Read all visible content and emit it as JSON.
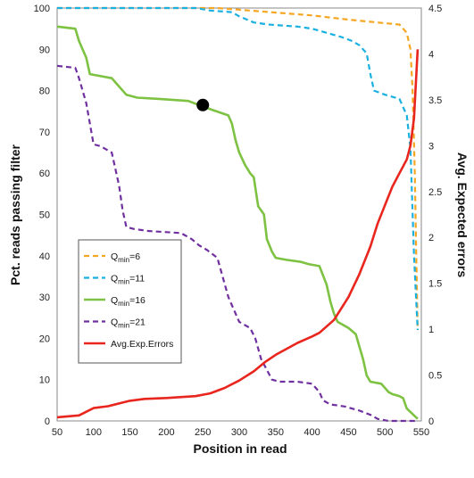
{
  "chart_data": {
    "type": "line",
    "xlabel": "Position in read",
    "ylabel_left": "Pct. reads passing filter",
    "ylabel_right": "Avg. Expected errors",
    "xlim": [
      50,
      550
    ],
    "ylim_left": [
      0,
      100
    ],
    "ylim_right": [
      0,
      4.5
    ],
    "x_ticks": [
      50,
      100,
      150,
      200,
      250,
      300,
      350,
      400,
      450,
      500,
      550
    ],
    "y_ticks_left": [
      0,
      10,
      20,
      30,
      40,
      50,
      60,
      70,
      80,
      90,
      100
    ],
    "y_ticks_right": [
      "0",
      "0.5",
      "1",
      "1.5",
      "2",
      "2.5",
      "3",
      "3.5",
      "4",
      "4.5"
    ],
    "grid": true,
    "legend_position": "lower-left",
    "series": [
      {
        "name": "Q",
        "subscript": "min",
        "suffix": "=6",
        "color": "#f5a623",
        "dash": true,
        "axis": "left",
        "points": [
          [
            50,
            100
          ],
          [
            270,
            100
          ],
          [
            300,
            99.6
          ],
          [
            350,
            98.9
          ],
          [
            400,
            98.2
          ],
          [
            450,
            97.2
          ],
          [
            490,
            96.5
          ],
          [
            520,
            96
          ],
          [
            530,
            94
          ],
          [
            535,
            90
          ],
          [
            538,
            80
          ],
          [
            541,
            60
          ],
          [
            543,
            40
          ],
          [
            545,
            22
          ]
        ]
      },
      {
        "name": "Q",
        "subscript": "min",
        "suffix": "=11",
        "color": "#1ab0e0",
        "dash": true,
        "axis": "left",
        "points": [
          [
            50,
            100
          ],
          [
            240,
            100
          ],
          [
            260,
            99.4
          ],
          [
            290,
            99
          ],
          [
            300,
            98
          ],
          [
            320,
            96.5
          ],
          [
            340,
            96
          ],
          [
            380,
            95.5
          ],
          [
            400,
            95
          ],
          [
            440,
            93
          ],
          [
            455,
            92
          ],
          [
            465,
            91
          ],
          [
            475,
            89
          ],
          [
            480,
            84
          ],
          [
            485,
            80
          ],
          [
            500,
            79
          ],
          [
            520,
            78
          ],
          [
            530,
            74
          ],
          [
            535,
            66
          ],
          [
            540,
            40
          ],
          [
            545,
            22
          ]
        ]
      },
      {
        "name": "Q",
        "subscript": "min",
        "suffix": "=16",
        "color": "#7dc242",
        "dash": false,
        "axis": "left",
        "points": [
          [
            50,
            95.5
          ],
          [
            75,
            95
          ],
          [
            80,
            92
          ],
          [
            90,
            88
          ],
          [
            95,
            84
          ],
          [
            110,
            83.5
          ],
          [
            125,
            83
          ],
          [
            135,
            81
          ],
          [
            145,
            79
          ],
          [
            160,
            78.3
          ],
          [
            190,
            78
          ],
          [
            230,
            77.5
          ],
          [
            245,
            76.5
          ],
          [
            260,
            75.5
          ],
          [
            285,
            74
          ],
          [
            290,
            72
          ],
          [
            295,
            68
          ],
          [
            300,
            65
          ],
          [
            308,
            62
          ],
          [
            315,
            60
          ],
          [
            320,
            59
          ],
          [
            326,
            52
          ],
          [
            330,
            51
          ],
          [
            334,
            50
          ],
          [
            338,
            44
          ],
          [
            345,
            41
          ],
          [
            350,
            39.5
          ],
          [
            365,
            39
          ],
          [
            385,
            38.5
          ],
          [
            395,
            38
          ],
          [
            410,
            37.5
          ],
          [
            420,
            33
          ],
          [
            425,
            29
          ],
          [
            430,
            26
          ],
          [
            435,
            24
          ],
          [
            450,
            22.5
          ],
          [
            460,
            21
          ],
          [
            465,
            18
          ],
          [
            470,
            15
          ],
          [
            475,
            11
          ],
          [
            480,
            9.5
          ],
          [
            495,
            9
          ],
          [
            505,
            7
          ],
          [
            510,
            6.5
          ],
          [
            520,
            6
          ],
          [
            525,
            5.5
          ],
          [
            530,
            3
          ],
          [
            545,
            0.5
          ]
        ]
      },
      {
        "name": "Q",
        "subscript": "min",
        "suffix": "=21",
        "color": "#7030a0",
        "dash": true,
        "axis": "left",
        "points": [
          [
            50,
            86
          ],
          [
            75,
            85.5
          ],
          [
            80,
            83
          ],
          [
            90,
            77
          ],
          [
            95,
            72
          ],
          [
            100,
            67
          ],
          [
            110,
            66.5
          ],
          [
            125,
            65
          ],
          [
            135,
            57
          ],
          [
            140,
            51
          ],
          [
            145,
            47
          ],
          [
            155,
            46.5
          ],
          [
            175,
            46
          ],
          [
            220,
            45.5
          ],
          [
            235,
            44
          ],
          [
            245,
            42.5
          ],
          [
            255,
            41.5
          ],
          [
            270,
            39.5
          ],
          [
            285,
            30
          ],
          [
            295,
            26
          ],
          [
            300,
            24
          ],
          [
            315,
            22.5
          ],
          [
            322,
            20
          ],
          [
            330,
            15
          ],
          [
            336,
            13
          ],
          [
            345,
            10
          ],
          [
            355,
            9.5
          ],
          [
            380,
            9.5
          ],
          [
            400,
            9
          ],
          [
            410,
            7
          ],
          [
            415,
            5
          ],
          [
            425,
            4
          ],
          [
            445,
            3.5
          ],
          [
            465,
            2.5
          ],
          [
            480,
            1.5
          ],
          [
            490,
            0.5
          ],
          [
            505,
            0
          ],
          [
            545,
            0
          ]
        ]
      },
      {
        "name": "Avg.Exp.Errors",
        "subscript": "",
        "suffix": "",
        "color": "#e8261e",
        "dash": false,
        "axis": "right",
        "points": [
          [
            50,
            0.04
          ],
          [
            80,
            0.06
          ],
          [
            95,
            0.12
          ],
          [
            100,
            0.14
          ],
          [
            120,
            0.16
          ],
          [
            140,
            0.2
          ],
          [
            150,
            0.22
          ],
          [
            170,
            0.24
          ],
          [
            200,
            0.25
          ],
          [
            240,
            0.27
          ],
          [
            260,
            0.3
          ],
          [
            280,
            0.36
          ],
          [
            300,
            0.44
          ],
          [
            320,
            0.54
          ],
          [
            335,
            0.64
          ],
          [
            350,
            0.72
          ],
          [
            380,
            0.85
          ],
          [
            400,
            0.92
          ],
          [
            410,
            0.96
          ],
          [
            430,
            1.1
          ],
          [
            450,
            1.35
          ],
          [
            465,
            1.6
          ],
          [
            480,
            1.9
          ],
          [
            490,
            2.15
          ],
          [
            500,
            2.35
          ],
          [
            510,
            2.55
          ],
          [
            520,
            2.7
          ],
          [
            530,
            2.85
          ],
          [
            535,
            3.0
          ],
          [
            540,
            3.3
          ],
          [
            545,
            4.05
          ]
        ]
      }
    ],
    "marker": {
      "x": 250,
      "y": 76.5,
      "color": "#000000"
    }
  }
}
